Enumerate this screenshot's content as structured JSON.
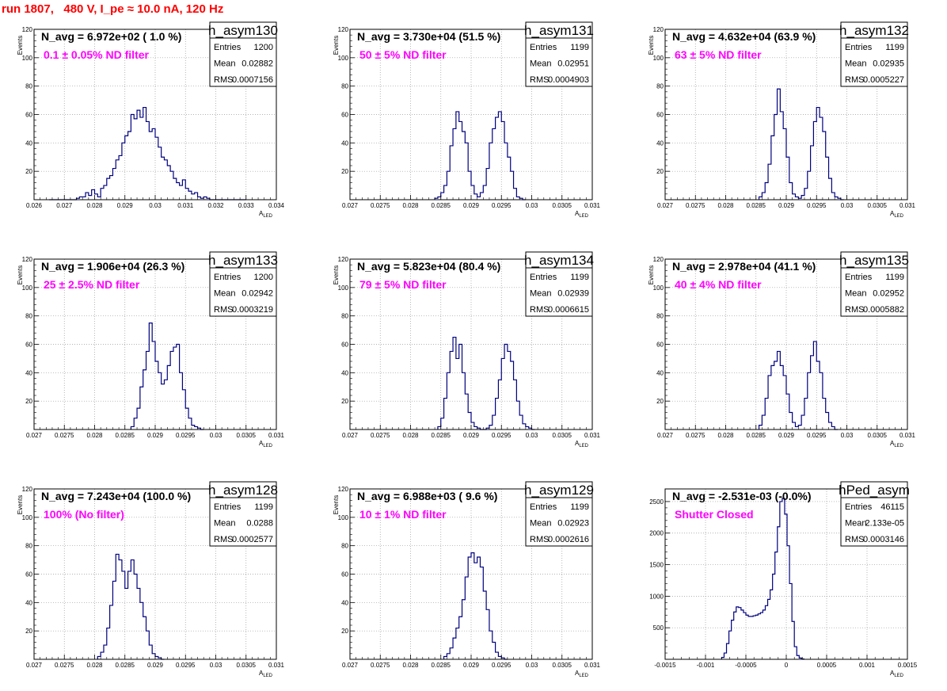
{
  "title": "run 1807,   480 V, I_pe ≈ 10.0 nA, 120 Hz",
  "chart_data": [
    {
      "type": "histogram",
      "name": "h_asym130",
      "n_avg": "N_avg = 6.972e+02 ( 1.0 %)",
      "filter": "0.1 ± 0.05% ND filter",
      "stats": {
        "Entries": "1200",
        "Mean": "0.02882",
        "RMS": "0.0007156"
      },
      "xlabel": "A",
      "xlabel_sub": "LED",
      "ylabel": "Events",
      "xlim": [
        0.026,
        0.034
      ],
      "ylim": [
        0,
        120
      ],
      "xticks": [
        0.026,
        0.027,
        0.028,
        0.029,
        0.03,
        0.031,
        0.032,
        0.033,
        0.034
      ],
      "xtick_labels": [
        "0.026",
        "0.027",
        "0.028",
        "0.029",
        "0.03",
        "0.031",
        "0.032",
        "0.033",
        "0.034"
      ],
      "yticks": [
        0,
        20,
        40,
        60,
        80,
        100,
        120
      ],
      "ytick_labels": [
        "",
        "20",
        "40",
        "60",
        "80",
        "100",
        "120"
      ],
      "x_start": 0.0265,
      "bin_width": 0.0001,
      "values": [
        0,
        0,
        0,
        0,
        0,
        0,
        0,
        0,
        0,
        1,
        2,
        2,
        5,
        3,
        7,
        4,
        2,
        8,
        10,
        15,
        17,
        22,
        28,
        31,
        40,
        45,
        48,
        60,
        57,
        63,
        58,
        65,
        55,
        48,
        50,
        44,
        37,
        30,
        28,
        24,
        20,
        15,
        12,
        10,
        14,
        8,
        6,
        4,
        5,
        2,
        1,
        2,
        1,
        0,
        0,
        0,
        0,
        0,
        0,
        0,
        0,
        0,
        0,
        0,
        0
      ]
    },
    {
      "type": "histogram",
      "name": "h_asym131",
      "n_avg": "N_avg = 3.730e+04 (51.5 %)",
      "filter": "50 ± 5% ND filter",
      "stats": {
        "Entries": "1199",
        "Mean": "0.02951",
        "RMS": "0.0004903"
      },
      "xlabel": "A",
      "xlabel_sub": "LED",
      "ylabel": "Events",
      "xlim": [
        0.027,
        0.031
      ],
      "ylim": [
        0,
        120
      ],
      "xticks": [
        0.027,
        0.0275,
        0.028,
        0.0285,
        0.029,
        0.0295,
        0.03,
        0.0305,
        0.031
      ],
      "xtick_labels": [
        "0.027",
        "0.0275",
        "0.028",
        "0.0285",
        "0.029",
        "0.0295",
        "0.03",
        "0.0305",
        "0.031"
      ],
      "yticks": [
        0,
        20,
        40,
        60,
        80,
        100,
        120
      ],
      "ytick_labels": [
        "",
        "20",
        "40",
        "60",
        "80",
        "100",
        "120"
      ],
      "x_start": 0.0284,
      "bin_width": 5e-05,
      "values": [
        1,
        2,
        5,
        10,
        20,
        38,
        50,
        62,
        55,
        48,
        40,
        20,
        10,
        4,
        2,
        5,
        10,
        22,
        40,
        50,
        58,
        62,
        55,
        40,
        30,
        20,
        8,
        2,
        1,
        0
      ]
    },
    {
      "type": "histogram",
      "name": "h_asym132",
      "n_avg": "N_avg = 4.632e+04 (63.9 %)",
      "filter": "63 ± 5% ND filter",
      "stats": {
        "Entries": "1199",
        "Mean": "0.02935",
        "RMS": "0.0005227"
      },
      "xlabel": "A",
      "xlabel_sub": "LED",
      "ylabel": "Events",
      "xlim": [
        0.027,
        0.031
      ],
      "ylim": [
        0,
        120
      ],
      "xticks": [
        0.027,
        0.0275,
        0.028,
        0.0285,
        0.029,
        0.0295,
        0.03,
        0.0305,
        0.031
      ],
      "xtick_labels": [
        "0.027",
        "0.0275",
        "0.028",
        "0.0285",
        "0.029",
        "0.0295",
        "0.03",
        "0.0305",
        "0.031"
      ],
      "yticks": [
        0,
        20,
        40,
        60,
        80,
        100,
        120
      ],
      "ytick_labels": [
        "",
        "20",
        "40",
        "60",
        "80",
        "100",
        "120"
      ],
      "x_start": 0.02855,
      "bin_width": 5e-05,
      "values": [
        2,
        5,
        12,
        25,
        45,
        60,
        78,
        62,
        50,
        30,
        12,
        4,
        2,
        1,
        3,
        8,
        20,
        38,
        55,
        65,
        58,
        48,
        30,
        15,
        5,
        2,
        1,
        0
      ]
    },
    {
      "type": "histogram",
      "name": "h_asym133",
      "n_avg": "N_avg = 1.906e+04 (26.3 %)",
      "filter": "25 ± 2.5% ND filter",
      "stats": {
        "Entries": "1200",
        "Mean": "0.02942",
        "RMS": "0.0003219"
      },
      "xlabel": "A",
      "xlabel_sub": "LED",
      "ylabel": "Events",
      "xlim": [
        0.027,
        0.031
      ],
      "ylim": [
        0,
        120
      ],
      "xticks": [
        0.027,
        0.0275,
        0.028,
        0.0285,
        0.029,
        0.0295,
        0.03,
        0.0305,
        0.031
      ],
      "xtick_labels": [
        "0.027",
        "0.0275",
        "0.028",
        "0.0285",
        "0.029",
        "0.0295",
        "0.03",
        "0.0305",
        "0.031"
      ],
      "yticks": [
        0,
        20,
        40,
        60,
        80,
        100,
        120
      ],
      "ytick_labels": [
        "",
        "20",
        "40",
        "60",
        "80",
        "100",
        "120"
      ],
      "x_start": 0.0286,
      "bin_width": 5e-05,
      "values": [
        2,
        8,
        15,
        30,
        42,
        55,
        75,
        62,
        48,
        40,
        32,
        35,
        45,
        55,
        58,
        60,
        40,
        28,
        15,
        8,
        3,
        2,
        1,
        0
      ]
    },
    {
      "type": "histogram",
      "name": "h_asym134",
      "n_avg": "N_avg = 5.823e+04 (80.4 %)",
      "filter": "79 ± 5% ND filter",
      "stats": {
        "Entries": "1199",
        "Mean": "0.02939",
        "RMS": "0.0006615"
      },
      "xlabel": "A",
      "xlabel_sub": "LED",
      "ylabel": "Events",
      "xlim": [
        0.027,
        0.031
      ],
      "ylim": [
        0,
        120
      ],
      "xticks": [
        0.027,
        0.0275,
        0.028,
        0.0285,
        0.029,
        0.0295,
        0.03,
        0.0305,
        0.031
      ],
      "xtick_labels": [
        "0.027",
        "0.0275",
        "0.028",
        "0.0285",
        "0.029",
        "0.0295",
        "0.03",
        "0.0305",
        "0.031"
      ],
      "yticks": [
        0,
        20,
        40,
        60,
        80,
        100,
        120
      ],
      "ytick_labels": [
        "",
        "20",
        "40",
        "60",
        "80",
        "100",
        "120"
      ],
      "x_start": 0.02845,
      "bin_width": 5e-05,
      "values": [
        2,
        8,
        22,
        40,
        55,
        65,
        50,
        60,
        40,
        25,
        12,
        5,
        2,
        1,
        0,
        0,
        1,
        3,
        10,
        22,
        35,
        50,
        60,
        55,
        48,
        35,
        20,
        10,
        4,
        2,
        1,
        0
      ]
    },
    {
      "type": "histogram",
      "name": "h_asym135",
      "n_avg": "N_avg = 2.978e+04 (41.1 %)",
      "filter": "40 ± 4% ND filter",
      "stats": {
        "Entries": "1199",
        "Mean": "0.02952",
        "RMS": "0.0005882"
      },
      "xlabel": "A",
      "xlabel_sub": "LED",
      "ylabel": "Events",
      "xlim": [
        0.027,
        0.031
      ],
      "ylim": [
        0,
        120
      ],
      "xticks": [
        0.027,
        0.0275,
        0.028,
        0.0285,
        0.029,
        0.0295,
        0.03,
        0.0305,
        0.031
      ],
      "xtick_labels": [
        "0.027",
        "0.0275",
        "0.028",
        "0.0285",
        "0.029",
        "0.0295",
        "0.03",
        "0.0305",
        "0.031"
      ],
      "yticks": [
        0,
        20,
        40,
        60,
        80,
        100,
        120
      ],
      "ytick_labels": [
        "",
        "20",
        "40",
        "60",
        "80",
        "100",
        "120"
      ],
      "x_start": 0.02855,
      "bin_width": 5e-05,
      "values": [
        3,
        10,
        22,
        38,
        45,
        48,
        55,
        45,
        38,
        25,
        12,
        5,
        2,
        3,
        10,
        22,
        40,
        52,
        62,
        48,
        40,
        22,
        12,
        5,
        2,
        0
      ]
    },
    {
      "type": "histogram",
      "name": "h_asym128",
      "n_avg": "N_avg = 7.243e+04 (100.0 %)",
      "filter": "100% (No filter)",
      "stats": {
        "Entries": "1199",
        "Mean": "0.0288",
        "RMS": "0.0002577"
      },
      "xlabel": "A",
      "xlabel_sub": "LED",
      "ylabel": "Events",
      "xlim": [
        0.027,
        0.031
      ],
      "ylim": [
        0,
        120
      ],
      "xticks": [
        0.027,
        0.0275,
        0.028,
        0.0285,
        0.029,
        0.0295,
        0.03,
        0.0305,
        0.031
      ],
      "xtick_labels": [
        "0.027",
        "0.0275",
        "0.028",
        "0.0285",
        "0.029",
        "0.0295",
        "0.03",
        "0.0305",
        "0.031"
      ],
      "yticks": [
        0,
        20,
        40,
        60,
        80,
        100,
        120
      ],
      "ytick_labels": [
        "",
        "20",
        "40",
        "60",
        "80",
        "100",
        "120"
      ],
      "x_start": 0.02805,
      "bin_width": 5e-05,
      "values": [
        2,
        5,
        10,
        22,
        38,
        55,
        74,
        70,
        62,
        50,
        62,
        70,
        60,
        50,
        40,
        30,
        20,
        10,
        4,
        2,
        1,
        0
      ]
    },
    {
      "type": "histogram",
      "name": "h_asym129",
      "n_avg": "N_avg = 6.988e+03 ( 9.6 %)",
      "filter": "10 ± 1% ND filter",
      "stats": {
        "Entries": "1199",
        "Mean": "0.02923",
        "RMS": "0.0002616"
      },
      "xlabel": "A",
      "xlabel_sub": "LED",
      "ylabel": "Events",
      "xlim": [
        0.027,
        0.031
      ],
      "ylim": [
        0,
        120
      ],
      "xticks": [
        0.027,
        0.0275,
        0.028,
        0.0285,
        0.029,
        0.0295,
        0.03,
        0.0305,
        0.031
      ],
      "xtick_labels": [
        "0.027",
        "0.0275",
        "0.028",
        "0.0285",
        "0.029",
        "0.0295",
        "0.03",
        "0.0305",
        "0.031"
      ],
      "yticks": [
        0,
        20,
        40,
        60,
        80,
        100,
        120
      ],
      "ytick_labels": [
        "",
        "20",
        "40",
        "60",
        "80",
        "100",
        "120"
      ],
      "x_start": 0.02855,
      "bin_width": 5e-05,
      "values": [
        2,
        4,
        8,
        15,
        22,
        30,
        42,
        58,
        72,
        75,
        68,
        72,
        65,
        48,
        35,
        20,
        12,
        5,
        2,
        1,
        0
      ]
    },
    {
      "type": "histogram",
      "name": "hPed_asym",
      "n_avg": "N_avg = -2.531e-03 (-0.0%)",
      "filter": "Shutter Closed",
      "stats": {
        "Entries": "46115",
        "Mean": "2.133e-05",
        "RMS": "0.0003146"
      },
      "xlabel": "A",
      "xlabel_sub": "LED",
      "ylabel": "",
      "xlim": [
        -0.0015,
        0.0015
      ],
      "ylim": [
        0,
        2700
      ],
      "xticks": [
        -0.0015,
        -0.001,
        -0.0005,
        0,
        0.0005,
        0.001,
        0.0015
      ],
      "xtick_labels": [
        "-0.0015",
        "-0.001",
        "-0.0005",
        "0",
        "0.0005",
        "0.001",
        "0.0015"
      ],
      "yticks": [
        0,
        500,
        1000,
        1500,
        2000,
        2500
      ],
      "ytick_labels": [
        "",
        "500",
        "1000",
        "1500",
        "2000",
        "2500"
      ],
      "x_start": -0.0008,
      "bin_width": 3e-05,
      "values": [
        30,
        100,
        250,
        450,
        620,
        750,
        830,
        820,
        780,
        740,
        700,
        680,
        680,
        690,
        700,
        720,
        740,
        780,
        850,
        950,
        1100,
        1350,
        1700,
        2100,
        2500,
        2550,
        2300,
        1800,
        1200,
        600,
        200,
        60,
        20,
        5
      ]
    }
  ]
}
